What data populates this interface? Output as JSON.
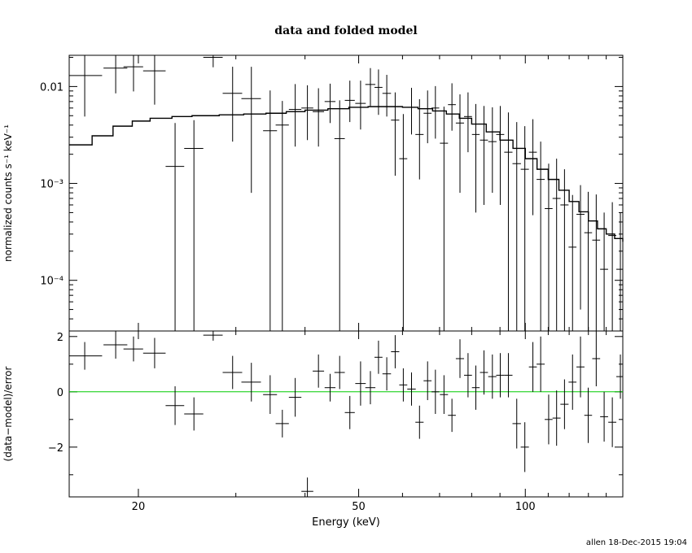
{
  "title": "data and folded model",
  "footer": "allen 18-Dec-2015 19:04",
  "chart_data": [
    {
      "panel": "top",
      "type": "scatter",
      "title": "data and folded model",
      "xlabel": "Energy (keV)",
      "ylabel": "normalized counts s⁻¹ keV⁻¹",
      "xscale": "log",
      "yscale": "log",
      "xlim": [
        15,
        150
      ],
      "ylim": [
        3e-05,
        0.021
      ],
      "y_ticks": [
        {
          "value": 0.01,
          "label": "0.01"
        },
        {
          "value": 0.001,
          "label": "10⁻³"
        },
        {
          "value": 0.0001,
          "label": "10⁻⁴"
        }
      ],
      "series": [
        {
          "kind": "data",
          "x": [
            16,
            18.2,
            19.6,
            21.4,
            23.3,
            25.2,
            27.3,
            29.6,
            32,
            34.6,
            36.4,
            38.4,
            40.4,
            42.3,
            44.4,
            46.2,
            48.2,
            50.4,
            52.5,
            54.3,
            56.2,
            58.2,
            60.2,
            62.3,
            64.4,
            66.6,
            68.8,
            71.3,
            73.7,
            76.2,
            78.8,
            81.4,
            84.2,
            87.2,
            90.1,
            93.2,
            96.5,
            99.8,
            103.2,
            106.6,
            110.2,
            113.9,
            117.7,
            121.7,
            125.8,
            129.9,
            134.3,
            138.8,
            143.6,
            148.5
          ],
          "y": [
            0.013,
            0.0155,
            0.016,
            0.0145,
            0.0015,
            0.0023,
            0.02,
            0.0085,
            0.0075,
            0.0035,
            0.004,
            0.0058,
            0.006,
            0.0055,
            0.007,
            0.0029,
            0.0072,
            0.0067,
            0.0105,
            0.0098,
            0.0085,
            0.0045,
            0.0018,
            0.0061,
            0.0032,
            0.0053,
            0.006,
            0.0026,
            0.0065,
            0.0042,
            0.0049,
            0.0032,
            0.0028,
            0.0027,
            0.0032,
            0.0021,
            0.0016,
            0.0014,
            0.0021,
            0.0011,
            0.00055,
            0.0007,
            0.0006,
            0.00022,
            0.00048,
            0.00031,
            0.00026,
            0.00013,
            0.00029,
            0.00013
          ],
          "xerr": [
            1.2,
            0.9,
            0.8,
            1.0,
            0.9,
            1.0,
            1.1,
            1.2,
            1.3,
            1.0,
            1.0,
            1.0,
            1.0,
            1.0,
            1.0,
            1.0,
            1.0,
            1.1,
            1.1,
            0.9,
            1.0,
            1.0,
            1.0,
            1.1,
            1.1,
            1.1,
            1.1,
            1.2,
            1.2,
            1.3,
            1.3,
            1.3,
            1.4,
            1.5,
            1.5,
            1.6,
            1.7,
            1.7,
            1.7,
            1.8,
            1.8,
            1.9,
            2.0,
            2.0,
            2.1,
            2.1,
            2.2,
            2.3,
            2.4,
            2.5
          ],
          "ylo": [
            0.0049,
            0.0085,
            0.0089,
            0.0065,
            3e-05,
            3e-05,
            0.0158,
            0.0027,
            0.0008,
            3e-05,
            3e-05,
            0.0024,
            0.0028,
            0.0024,
            0.0042,
            3e-05,
            0.0043,
            0.0036,
            0.0063,
            0.0051,
            0.0049,
            0.0012,
            3e-05,
            0.0032,
            0.0011,
            0.0026,
            0.0029,
            3e-05,
            0.0035,
            0.0008,
            0.0021,
            0.0005,
            0.0006,
            0.0008,
            0.0006,
            3e-05,
            3e-05,
            3e-05,
            0.00047,
            3e-05,
            3e-05,
            3e-05,
            3e-05,
            3e-05,
            5e-05,
            3e-05,
            3e-05,
            3e-05,
            3e-05,
            3e-05
          ],
          "yhi": [
            0.0225,
            0.0225,
            0.0225,
            0.0225,
            0.0042,
            0.0045,
            0.0225,
            0.016,
            0.016,
            0.0091,
            0.0071,
            0.0106,
            0.0103,
            0.0096,
            0.0107,
            0.0072,
            0.0115,
            0.0115,
            0.0155,
            0.015,
            0.0132,
            0.0087,
            0.0052,
            0.0097,
            0.0074,
            0.0091,
            0.0101,
            0.0062,
            0.0108,
            0.0083,
            0.0087,
            0.0066,
            0.0063,
            0.0061,
            0.0063,
            0.0054,
            0.0043,
            0.0039,
            0.0046,
            0.0027,
            0.0016,
            0.0018,
            0.0014,
            0.00076,
            0.00096,
            0.00082,
            0.00077,
            0.0005,
            0.00064,
            0.0005
          ]
        },
        {
          "kind": "model",
          "x": [
            15.0,
            16.5,
            18.0,
            19.5,
            21.0,
            23.0,
            25.0,
            28.0,
            31.0,
            34.0,
            37.0,
            40.0,
            44.0,
            48.0,
            52.0,
            56.0,
            60.0,
            64.0,
            68.0,
            72.0,
            76.0,
            80.0,
            85.0,
            90.0,
            95.0,
            100.0,
            105.0,
            110.0,
            115.0,
            120.0,
            125.0,
            130.0,
            135.0,
            140.0,
            145.0,
            150.0
          ],
          "y": [
            0.0025,
            0.0031,
            0.0039,
            0.0044,
            0.0047,
            0.0049,
            0.005,
            0.0051,
            0.0052,
            0.0053,
            0.0055,
            0.0057,
            0.0059,
            0.0061,
            0.0062,
            0.0062,
            0.0061,
            0.0059,
            0.0056,
            0.0052,
            0.0047,
            0.0041,
            0.0034,
            0.0028,
            0.0023,
            0.0018,
            0.0014,
            0.0011,
            0.00085,
            0.00065,
            0.00051,
            0.00041,
            0.00034,
            0.0003,
            0.00027,
            0.00025
          ]
        }
      ]
    },
    {
      "panel": "bottom",
      "type": "scatter",
      "xlabel": "Energy (keV)",
      "ylabel": "(data−model)/error",
      "xscale": "log",
      "xlim": [
        15,
        150
      ],
      "ylim": [
        -3.8,
        2.2
      ],
      "x_ticks": [
        {
          "value": 20,
          "label": "20"
        },
        {
          "value": 50,
          "label": "50"
        },
        {
          "value": 100,
          "label": "100"
        }
      ],
      "y_ticks": [
        {
          "value": 2,
          "label": "2"
        },
        {
          "value": 0,
          "label": "0"
        },
        {
          "value": -2,
          "label": "−2"
        }
      ],
      "zero_line_color": "#00cc00",
      "series": [
        {
          "kind": "residuals",
          "x": [
            16,
            18.2,
            19.6,
            21.4,
            23.3,
            25.2,
            27.3,
            29.6,
            32,
            34.6,
            36.4,
            38.4,
            40.4,
            42.3,
            44.4,
            46.2,
            48.2,
            50.4,
            52.5,
            54.3,
            56.2,
            58.2,
            60.2,
            62.3,
            64.4,
            66.6,
            68.8,
            71.3,
            73.7,
            76.2,
            78.8,
            81.4,
            84.2,
            87.2,
            90.1,
            93.2,
            96.5,
            99.8,
            103.2,
            106.6,
            110.2,
            113.9,
            117.7,
            121.7,
            125.8,
            129.9,
            134.3,
            138.8,
            143.6,
            148.5
          ],
          "y": [
            1.3,
            1.7,
            1.55,
            1.4,
            -0.5,
            -0.8,
            2.05,
            0.7,
            0.35,
            -0.1,
            -1.15,
            -0.2,
            -3.6,
            0.75,
            0.15,
            0.7,
            -0.75,
            0.3,
            0.15,
            1.25,
            0.65,
            1.45,
            0.25,
            0.1,
            -1.1,
            0.4,
            0.0,
            -0.1,
            -0.85,
            1.2,
            0.6,
            0.15,
            0.7,
            0.55,
            0.6,
            0.6,
            -1.15,
            -2.0,
            0.9,
            1.0,
            -1.0,
            -0.95,
            -0.45,
            0.35,
            0.9,
            -0.85,
            1.2,
            -0.9,
            -1.1,
            0.55
          ],
          "yerr": [
            0.5,
            0.5,
            0.45,
            0.55,
            0.7,
            0.6,
            0.2,
            0.6,
            0.7,
            0.7,
            0.5,
            0.7,
            0.5,
            0.6,
            0.5,
            0.6,
            0.6,
            0.8,
            0.6,
            0.6,
            0.6,
            0.6,
            0.6,
            0.6,
            0.6,
            0.7,
            0.8,
            0.7,
            0.6,
            0.7,
            0.8,
            0.8,
            0.8,
            0.8,
            0.8,
            0.8,
            0.9,
            0.9,
            0.9,
            1.0,
            0.9,
            1.0,
            0.9,
            1.0,
            1.1,
            1.0,
            1.0,
            0.9,
            0.9,
            0.8
          ]
        }
      ]
    }
  ]
}
